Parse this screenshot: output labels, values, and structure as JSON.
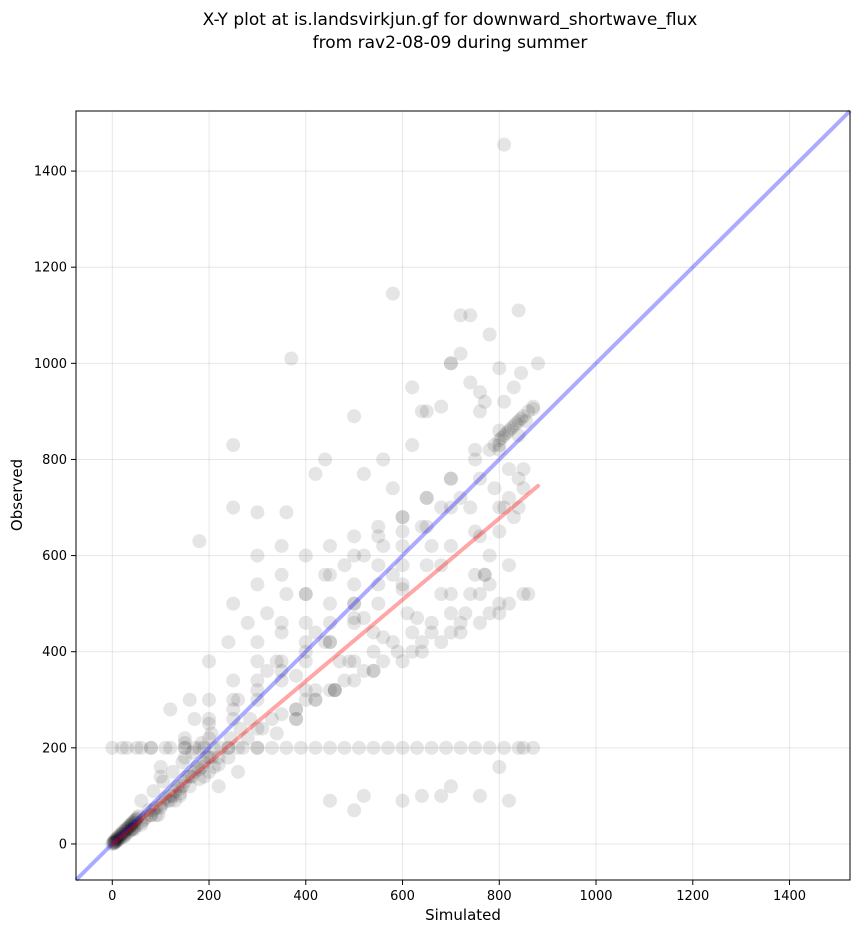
{
  "chart_data": {
    "type": "scatter",
    "title": "X-Y plot at is.landsvirkjun.gf for downward_shortwave_flux",
    "subtitle": "from rav2-08-09 during summer",
    "xlabel": "Simulated",
    "ylabel": "Observed",
    "xlim": [
      -75,
      1525
    ],
    "ylim": [
      -75,
      1525
    ],
    "xticks": [
      0,
      200,
      400,
      600,
      800,
      1000,
      1200,
      1400
    ],
    "yticks": [
      0,
      200,
      400,
      600,
      800,
      1000,
      1200,
      1400
    ],
    "grid": true,
    "colors": {
      "points": "#000000",
      "identity_line": "#0000ff",
      "fit_line": "#ff0000",
      "grid": "#b0b0b0"
    },
    "points_opacity": 0.1,
    "identity_line": {
      "x": [
        -75,
        1525
      ],
      "y": [
        -75,
        1525
      ]
    },
    "fit_line": {
      "x": [
        0,
        880
      ],
      "y": [
        0,
        745
      ]
    },
    "series": [
      {
        "x": [
          0,
          2,
          3,
          5,
          6,
          8,
          10,
          12,
          15,
          18,
          20,
          22,
          25,
          28,
          30,
          33,
          35,
          38,
          40,
          42,
          45,
          48,
          50,
          52,
          55,
          5,
          10,
          15,
          20,
          25,
          30,
          35,
          40,
          45,
          50,
          3,
          6,
          9,
          12,
          16,
          22,
          28,
          34,
          40,
          46,
          60,
          70,
          80,
          90,
          100,
          110,
          120,
          130,
          140,
          150,
          160,
          170,
          180,
          190,
          200,
          60,
          75,
          85,
          95,
          105,
          115,
          125,
          135,
          145,
          155,
          165,
          175,
          185,
          195,
          205,
          50,
          80,
          120,
          150,
          180,
          210,
          240,
          270,
          300,
          330,
          360,
          390,
          420,
          450,
          480,
          510,
          540,
          570,
          600,
          630,
          660,
          690,
          720,
          750,
          780,
          810,
          840,
          100,
          150,
          200,
          250,
          300,
          350,
          400,
          450,
          500,
          550,
          600,
          650,
          700,
          750,
          800,
          850,
          120,
          160,
          200,
          240,
          280,
          320,
          360,
          400,
          440,
          480,
          520,
          560,
          600,
          640,
          680,
          720,
          760,
          800,
          840,
          220,
          260,
          300,
          340,
          380,
          420,
          460,
          500,
          540,
          580,
          620,
          660,
          700,
          740,
          780,
          820,
          250,
          300,
          350,
          400,
          450,
          500,
          550,
          600,
          650,
          700,
          750,
          800,
          780,
          790,
          800,
          805,
          810,
          815,
          820,
          825,
          830,
          835,
          840,
          845,
          850,
          855,
          860,
          870,
          800,
          810,
          820,
          830,
          840,
          850,
          780,
          770,
          760,
          790,
          0,
          20,
          30,
          60,
          80,
          110,
          150,
          170,
          190,
          600,
          640,
          680,
          720,
          760,
          800,
          820,
          850,
          540,
          500,
          460,
          420,
          380,
          250,
          300,
          360,
          370,
          420,
          440,
          500,
          520,
          560,
          580,
          620,
          640,
          680,
          700,
          720,
          740,
          760,
          770,
          800,
          810,
          830,
          840,
          870,
          880,
          580,
          620,
          650,
          700,
          720,
          740,
          760,
          780,
          810,
          845,
          350,
          300,
          250,
          180,
          450,
          500,
          520,
          600,
          640,
          680,
          700,
          760,
          800,
          820,
          850,
          870,
          300,
          350,
          400,
          450,
          500,
          550,
          600,
          650,
          700,
          750,
          800,
          200,
          250,
          300,
          350,
          400,
          450,
          500,
          550,
          600,
          650,
          700,
          150,
          200,
          250,
          300,
          350,
          400,
          450,
          500,
          550,
          600,
          100,
          150,
          200,
          250,
          300,
          350,
          400,
          450,
          500,
          260,
          340,
          420,
          500,
          580,
          660,
          740,
          820,
          380,
          440,
          520,
          600,
          680,
          760,
          840,
          320,
          400,
          480,
          560,
          640,
          720,
          800,
          220,
          300,
          380,
          460,
          540,
          620,
          700,
          780,
          860,
          170,
          240,
          310,
          380,
          450,
          520,
          590,
          660,
          730,
          130,
          190,
          260,
          330,
          400,
          470,
          540,
          610,
          680,
          750,
          90,
          140,
          210,
          280,
          350,
          420,
          490,
          560,
          630,
          700,
          770,
          40,
          60,
          80,
          100,
          120,
          140,
          160,
          180,
          200,
          220,
          240,
          25,
          45,
          65,
          85,
          105,
          125,
          145,
          165,
          185,
          205,
          225,
          245,
          265,
          285
        ],
        "y": [
          0,
          3,
          5,
          8,
          4,
          10,
          12,
          15,
          18,
          20,
          22,
          25,
          28,
          30,
          32,
          35,
          38,
          40,
          42,
          45,
          48,
          50,
          52,
          55,
          58,
          2,
          6,
          10,
          14,
          18,
          22,
          26,
          30,
          34,
          38,
          1,
          4,
          7,
          10,
          14,
          20,
          26,
          32,
          38,
          44,
          40,
          55,
          60,
          75,
          80,
          95,
          100,
          110,
          115,
          130,
          140,
          150,
          155,
          170,
          180,
          90,
          70,
          110,
          60,
          130,
          90,
          150,
          120,
          170,
          140,
          190,
          160,
          210,
          180,
          230,
          200,
          200,
          200,
          200,
          200,
          200,
          200,
          200,
          200,
          200,
          200,
          200,
          200,
          200,
          200,
          200,
          200,
          200,
          200,
          200,
          200,
          200,
          200,
          200,
          200,
          200,
          200,
          160,
          210,
          250,
          280,
          320,
          360,
          400,
          420,
          470,
          500,
          540,
          580,
          620,
          650,
          700,
          740,
          280,
          300,
          380,
          420,
          460,
          480,
          520,
          520,
          560,
          580,
          600,
          620,
          650,
          660,
          700,
          720,
          760,
          820,
          850,
          120,
          150,
          200,
          230,
          260,
          300,
          320,
          380,
          400,
          420,
          440,
          460,
          480,
          520,
          540,
          580,
          500,
          540,
          560,
          600,
          620,
          640,
          660,
          680,
          720,
          760,
          800,
          830,
          820,
          830,
          840,
          845,
          850,
          855,
          860,
          865,
          870,
          875,
          880,
          885,
          890,
          880,
          900,
          905,
          650,
          700,
          720,
          680,
          760,
          780,
          600,
          560,
          520,
          740,
          200,
          200,
          200,
          200,
          200,
          200,
          200,
          200,
          200,
          380,
          400,
          420,
          440,
          460,
          480,
          500,
          520,
          360,
          340,
          320,
          300,
          280,
          830,
          690,
          690,
          1010,
          770,
          800,
          890,
          770,
          800,
          740,
          830,
          900,
          910,
          1000,
          1100,
          960,
          940,
          920,
          990,
          1455,
          950,
          1110,
          910,
          1000,
          1145,
          950,
          900,
          1000,
          1020,
          1100,
          900,
          1060,
          920,
          980,
          620,
          600,
          700,
          630,
          90,
          70,
          100,
          90,
          100,
          100,
          120,
          100,
          160,
          90,
          200,
          200,
          420,
          460,
          520,
          560,
          600,
          640,
          680,
          720,
          760,
          820,
          860,
          300,
          340,
          380,
          440,
          460,
          500,
          540,
          580,
          620,
          660,
          700,
          220,
          260,
          300,
          340,
          380,
          420,
          460,
          500,
          540,
          580,
          140,
          180,
          220,
          260,
          300,
          340,
          380,
          420,
          460,
          300,
          380,
          440,
          500,
          560,
          620,
          700,
          780,
          350,
          420,
          470,
          530,
          580,
          640,
          700,
          360,
          300,
          340,
          380,
          420,
          460,
          500,
          180,
          240,
          260,
          320,
          360,
          400,
          440,
          480,
          520,
          260,
          200,
          240,
          280,
          320,
          360,
          400,
          440,
          480,
          90,
          140,
          200,
          260,
          320,
          380,
          440,
          480,
          520,
          560,
          60,
          100,
          160,
          220,
          270,
          320,
          380,
          430,
          470,
          520,
          560,
          30,
          45,
          60,
          75,
          90,
          105,
          120,
          135,
          150,
          165,
          180,
          15,
          30,
          50,
          70,
          85,
          100,
          120,
          140,
          160,
          180,
          200,
          220,
          240,
          260
        ]
      }
    ]
  }
}
